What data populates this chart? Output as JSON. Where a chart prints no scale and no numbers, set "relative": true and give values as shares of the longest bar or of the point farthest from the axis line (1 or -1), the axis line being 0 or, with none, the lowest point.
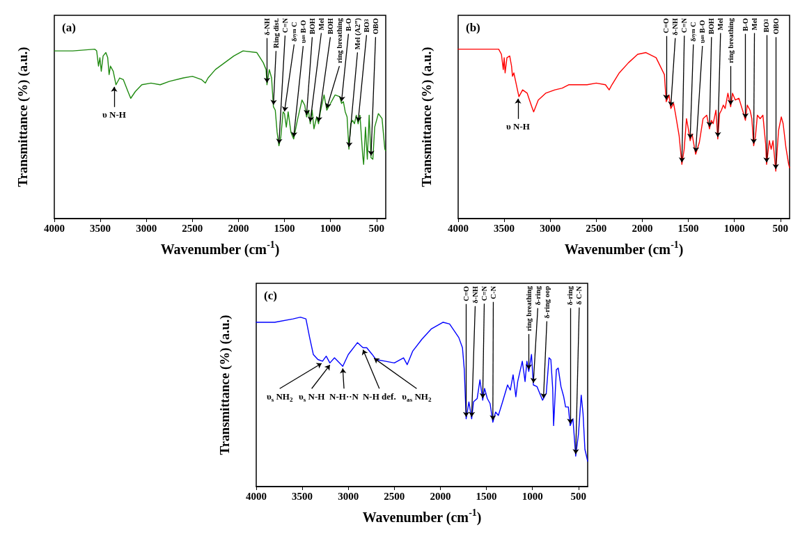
{
  "chart_data": [
    {
      "type": "line",
      "title": "(a)",
      "xlabel": "Wavenumber (cm$^{-1}$)",
      "ylabel": "Transmittance (%) (a.u.)",
      "xlim": [
        4000,
        400
      ],
      "xticks": [
        4000,
        3500,
        3000,
        2500,
        2000,
        1500,
        1000,
        500
      ],
      "relative": true,
      "marker": "none",
      "series": [
        {
          "color": "#1f8a10",
          "x": [
            4000,
            3800,
            3560,
            3540,
            3520,
            3505,
            3490,
            3470,
            3440,
            3420,
            3405,
            3390,
            3360,
            3330,
            3290,
            3250,
            3200,
            3170,
            3120,
            3050,
            2950,
            2850,
            2750,
            2600,
            2500,
            2400,
            2360,
            2330,
            2250,
            2150,
            2050,
            1950,
            1800,
            1730,
            1700,
            1690,
            1665,
            1640,
            1620,
            1600,
            1580,
            1560,
            1540,
            1515,
            1500,
            1480,
            1460,
            1430,
            1400,
            1360,
            1310,
            1280,
            1260,
            1240,
            1220,
            1200,
            1180,
            1150,
            1130,
            1110,
            1070,
            1040,
            1000,
            950,
            900,
            880,
            860,
            840,
            820,
            800,
            780,
            760,
            740,
            720,
            700,
            680,
            650,
            640,
            620,
            600,
            580,
            560,
            540,
            520,
            480,
            440,
            410,
            400
          ],
          "values": [
            0.99,
            0.99,
            1.0,
            0.99,
            0.9,
            0.95,
            0.87,
            0.96,
            0.98,
            0.95,
            0.85,
            0.9,
            0.87,
            0.79,
            0.83,
            0.82,
            0.75,
            0.71,
            0.75,
            0.79,
            0.8,
            0.79,
            0.81,
            0.83,
            0.84,
            0.82,
            0.8,
            0.83,
            0.88,
            0.92,
            0.96,
            0.99,
            0.98,
            0.92,
            0.88,
            0.79,
            0.88,
            0.83,
            0.66,
            0.64,
            0.51,
            0.43,
            0.48,
            0.63,
            0.62,
            0.54,
            0.63,
            0.51,
            0.47,
            0.58,
            0.7,
            0.67,
            0.6,
            0.64,
            0.56,
            0.64,
            0.53,
            0.6,
            0.56,
            0.63,
            0.73,
            0.64,
            0.68,
            0.73,
            0.72,
            0.68,
            0.69,
            0.63,
            0.6,
            0.41,
            0.56,
            0.58,
            0.56,
            0.61,
            0.56,
            0.61,
            0.37,
            0.32,
            0.54,
            0.35,
            0.61,
            0.36,
            0.35,
            0.54,
            0.62,
            0.59,
            0.41,
            0.4
          ]
        }
      ],
      "annotations": [
        {
          "text": "υ N-H",
          "x": 3350,
          "y": 0.79
        },
        {
          "text": "δ-NH",
          "x": 1690,
          "y": 0.79
        },
        {
          "text": "Ring dist.",
          "x": 1620,
          "y": 0.66
        },
        {
          "text": "C=N",
          "x": 1560,
          "y": 0.43
        },
        {
          "text": "δ$_{sym}$ C",
          "x": 1500,
          "y": 0.62
        },
        {
          "text": "υ$_{as}$ B-O",
          "x": 1400,
          "y": 0.47
        },
        {
          "text": "BOH",
          "x": 1260,
          "y": 0.6
        },
        {
          "text": "Mel",
          "x": 1220,
          "y": 0.56
        },
        {
          "text": "BOH",
          "x": 1130,
          "y": 0.56
        },
        {
          "text": "ring breathing",
          "x": 1040,
          "y": 0.64
        },
        {
          "text": "B-O",
          "x": 880,
          "y": 0.68
        },
        {
          "text": "Mel (A2”)",
          "x": 800,
          "y": 0.41
        },
        {
          "text": "BO$_{3}$",
          "x": 700,
          "y": 0.56
        },
        {
          "text": "OBO",
          "x": 560,
          "y": 0.36
        }
      ]
    },
    {
      "type": "line",
      "title": "(b)",
      "xlabel": "Wavenumber (cm$^{-1}$)",
      "ylabel": "Transmittance (%) (a.u.)",
      "xlim": [
        4000,
        400
      ],
      "xticks": [
        4000,
        3500,
        3000,
        2500,
        2000,
        1500,
        1000,
        500
      ],
      "relative": true,
      "marker": "none",
      "series": [
        {
          "color": "#ff0000",
          "x": [
            4000,
            3700,
            3560,
            3530,
            3510,
            3500,
            3490,
            3470,
            3440,
            3420,
            3410,
            3395,
            3360,
            3340,
            3300,
            3250,
            3200,
            3180,
            3130,
            3050,
            2950,
            2870,
            2800,
            2700,
            2600,
            2500,
            2400,
            2360,
            2330,
            2250,
            2150,
            2050,
            1960,
            1850,
            1760,
            1740,
            1710,
            1690,
            1660,
            1640,
            1600,
            1570,
            1545,
            1520,
            1500,
            1480,
            1460,
            1420,
            1380,
            1340,
            1300,
            1270,
            1250,
            1230,
            1200,
            1180,
            1160,
            1140,
            1120,
            1100,
            1070,
            1040,
            1020,
            990,
            950,
            900,
            880,
            860,
            830,
            810,
            790,
            770,
            750,
            720,
            690,
            660,
            650,
            620,
            600,
            580,
            550,
            520,
            490,
            470,
            440,
            410,
            400
          ],
          "values": [
            1.0,
            1.0,
            1.0,
            0.97,
            0.88,
            0.95,
            0.86,
            0.95,
            0.96,
            0.9,
            0.84,
            0.86,
            0.77,
            0.72,
            0.76,
            0.74,
            0.66,
            0.63,
            0.7,
            0.74,
            0.76,
            0.77,
            0.79,
            0.79,
            0.79,
            0.8,
            0.79,
            0.76,
            0.79,
            0.86,
            0.92,
            0.97,
            0.98,
            0.95,
            0.85,
            0.69,
            0.73,
            0.65,
            0.68,
            0.62,
            0.49,
            0.32,
            0.41,
            0.59,
            0.53,
            0.46,
            0.5,
            0.38,
            0.45,
            0.59,
            0.61,
            0.53,
            0.58,
            0.56,
            0.64,
            0.47,
            0.62,
            0.64,
            0.67,
            0.65,
            0.74,
            0.66,
            0.74,
            0.7,
            0.71,
            0.62,
            0.58,
            0.67,
            0.64,
            0.59,
            0.43,
            0.49,
            0.61,
            0.59,
            0.61,
            0.44,
            0.32,
            0.46,
            0.41,
            0.46,
            0.28,
            0.52,
            0.6,
            0.56,
            0.42,
            0.32,
            0.3
          ]
        }
      ],
      "annotations": [
        {
          "text": "υ N-H",
          "x": 3350,
          "y": 0.72
        },
        {
          "text": "C=O",
          "x": 1740,
          "y": 0.69
        },
        {
          "text": "δ-NH",
          "x": 1690,
          "y": 0.65
        },
        {
          "text": "C=N",
          "x": 1570,
          "y": 0.32
        },
        {
          "text": "δ$_{sym}$ C",
          "x": 1480,
          "y": 0.46
        },
        {
          "text": "υ$_{as}$ B-O",
          "x": 1420,
          "y": 0.38
        },
        {
          "text": "BOH",
          "x": 1270,
          "y": 0.53
        },
        {
          "text": "Mel",
          "x": 1180,
          "y": 0.47
        },
        {
          "text": "ring breathing",
          "x": 1040,
          "y": 0.66
        },
        {
          "text": "B-O",
          "x": 880,
          "y": 0.58
        },
        {
          "text": "Mel",
          "x": 790,
          "y": 0.43
        },
        {
          "text": "BO$_{3}$",
          "x": 650,
          "y": 0.32
        },
        {
          "text": "OBO",
          "x": 550,
          "y": 0.28
        }
      ]
    },
    {
      "type": "line",
      "title": "(c)",
      "xlabel": "Wavenumber (cm$^{-1}$)",
      "ylabel": "Transmittance (%) (a.u.)",
      "xlim": [
        4000,
        400
      ],
      "xticks": [
        4000,
        3500,
        3000,
        2500,
        2000,
        1500,
        1000,
        500
      ],
      "relative": true,
      "marker": "none",
      "series": [
        {
          "color": "#0000ff",
          "x": [
            4000,
            3800,
            3600,
            3520,
            3460,
            3420,
            3380,
            3330,
            3280,
            3240,
            3200,
            3150,
            3060,
            3000,
            2900,
            2840,
            2800,
            2740,
            2700,
            2600,
            2500,
            2400,
            2360,
            2300,
            2200,
            2100,
            1970,
            1900,
            1800,
            1760,
            1740,
            1720,
            1690,
            1660,
            1640,
            1600,
            1570,
            1540,
            1520,
            1490,
            1460,
            1430,
            1400,
            1370,
            1330,
            1270,
            1240,
            1210,
            1180,
            1160,
            1110,
            1080,
            1060,
            1040,
            1010,
            990,
            950,
            890,
            850,
            820,
            800,
            780,
            770,
            740,
            720,
            690,
            660,
            640,
            610,
            590,
            560,
            530,
            500,
            470,
            450,
            430,
            400
          ],
          "values": [
            0.97,
            0.97,
            0.99,
            1.0,
            0.99,
            0.88,
            0.78,
            0.75,
            0.74,
            0.77,
            0.73,
            0.76,
            0.71,
            0.78,
            0.85,
            0.82,
            0.82,
            0.78,
            0.75,
            0.74,
            0.73,
            0.76,
            0.72,
            0.8,
            0.87,
            0.93,
            0.97,
            0.96,
            0.88,
            0.82,
            0.69,
            0.4,
            0.5,
            0.4,
            0.5,
            0.52,
            0.63,
            0.51,
            0.58,
            0.52,
            0.49,
            0.38,
            0.44,
            0.42,
            0.49,
            0.6,
            0.57,
            0.66,
            0.53,
            0.62,
            0.74,
            0.62,
            0.74,
            0.68,
            0.78,
            0.6,
            0.59,
            0.51,
            0.55,
            0.76,
            0.75,
            0.58,
            0.36,
            0.69,
            0.7,
            0.59,
            0.53,
            0.47,
            0.47,
            0.36,
            0.4,
            0.18,
            0.31,
            0.54,
            0.43,
            0.22,
            0.15
          ]
        }
      ],
      "annotations": [
        {
          "text": "υ$_{s}$ NH$_{2}$",
          "x": 3290,
          "y": 0.74
        },
        {
          "text": "υ$_{s}$ N-H",
          "x": 3200,
          "y": 0.73
        },
        {
          "text": "N-H··N",
          "x": 3060,
          "y": 0.71
        },
        {
          "text": "N-H def.",
          "x": 2840,
          "y": 0.82
        },
        {
          "text": "υ$_{as}$ NH$_{2}$",
          "x": 2720,
          "y": 0.77
        },
        {
          "text": "C=O",
          "x": 1720,
          "y": 0.4
        },
        {
          "text": "δ-NH",
          "x": 1660,
          "y": 0.4
        },
        {
          "text": "C=N",
          "x": 1540,
          "y": 0.51
        },
        {
          "text": "C-N",
          "x": 1430,
          "y": 0.38
        },
        {
          "text": "ring breathing",
          "x": 1040,
          "y": 0.68
        },
        {
          "text": "δ-ring",
          "x": 990,
          "y": 0.6
        },
        {
          "text": "δ-ring oop",
          "x": 880,
          "y": 0.51
        },
        {
          "text": "δ-ring",
          "x": 590,
          "y": 0.36
        },
        {
          "text": "δ C-N",
          "x": 530,
          "y": 0.18
        }
      ]
    }
  ]
}
